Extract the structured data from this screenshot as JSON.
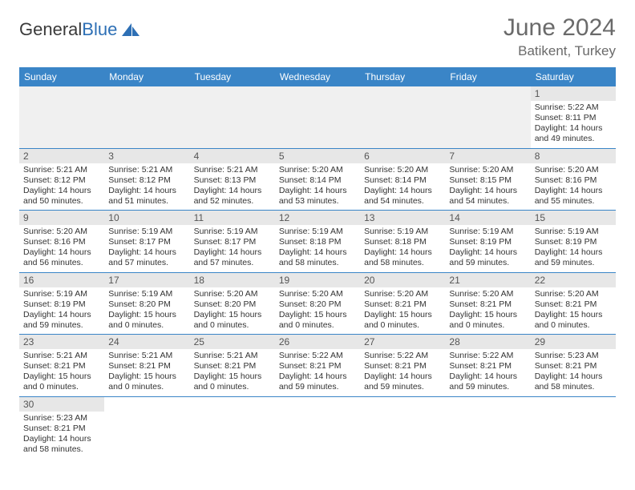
{
  "brand": {
    "name_a": "General",
    "name_b": "Blue"
  },
  "title": "June 2024",
  "location": "Batikent, Turkey",
  "colors": {
    "header_bg": "#3a85c7",
    "header_fg": "#ffffff",
    "daynum_bg": "#e7e7e7",
    "rule": "#3a85c7",
    "title_fg": "#6a6a6a"
  },
  "weekdays": [
    "Sunday",
    "Monday",
    "Tuesday",
    "Wednesday",
    "Thursday",
    "Friday",
    "Saturday"
  ],
  "leading_blanks": 6,
  "days": [
    {
      "n": 1,
      "sunrise": "5:22 AM",
      "sunset": "8:11 PM",
      "daylight": "14 hours and 49 minutes."
    },
    {
      "n": 2,
      "sunrise": "5:21 AM",
      "sunset": "8:12 PM",
      "daylight": "14 hours and 50 minutes."
    },
    {
      "n": 3,
      "sunrise": "5:21 AM",
      "sunset": "8:12 PM",
      "daylight": "14 hours and 51 minutes."
    },
    {
      "n": 4,
      "sunrise": "5:21 AM",
      "sunset": "8:13 PM",
      "daylight": "14 hours and 52 minutes."
    },
    {
      "n": 5,
      "sunrise": "5:20 AM",
      "sunset": "8:14 PM",
      "daylight": "14 hours and 53 minutes."
    },
    {
      "n": 6,
      "sunrise": "5:20 AM",
      "sunset": "8:14 PM",
      "daylight": "14 hours and 54 minutes."
    },
    {
      "n": 7,
      "sunrise": "5:20 AM",
      "sunset": "8:15 PM",
      "daylight": "14 hours and 54 minutes."
    },
    {
      "n": 8,
      "sunrise": "5:20 AM",
      "sunset": "8:16 PM",
      "daylight": "14 hours and 55 minutes."
    },
    {
      "n": 9,
      "sunrise": "5:20 AM",
      "sunset": "8:16 PM",
      "daylight": "14 hours and 56 minutes."
    },
    {
      "n": 10,
      "sunrise": "5:19 AM",
      "sunset": "8:17 PM",
      "daylight": "14 hours and 57 minutes."
    },
    {
      "n": 11,
      "sunrise": "5:19 AM",
      "sunset": "8:17 PM",
      "daylight": "14 hours and 57 minutes."
    },
    {
      "n": 12,
      "sunrise": "5:19 AM",
      "sunset": "8:18 PM",
      "daylight": "14 hours and 58 minutes."
    },
    {
      "n": 13,
      "sunrise": "5:19 AM",
      "sunset": "8:18 PM",
      "daylight": "14 hours and 58 minutes."
    },
    {
      "n": 14,
      "sunrise": "5:19 AM",
      "sunset": "8:19 PM",
      "daylight": "14 hours and 59 minutes."
    },
    {
      "n": 15,
      "sunrise": "5:19 AM",
      "sunset": "8:19 PM",
      "daylight": "14 hours and 59 minutes."
    },
    {
      "n": 16,
      "sunrise": "5:19 AM",
      "sunset": "8:19 PM",
      "daylight": "14 hours and 59 minutes."
    },
    {
      "n": 17,
      "sunrise": "5:19 AM",
      "sunset": "8:20 PM",
      "daylight": "15 hours and 0 minutes."
    },
    {
      "n": 18,
      "sunrise": "5:20 AM",
      "sunset": "8:20 PM",
      "daylight": "15 hours and 0 minutes."
    },
    {
      "n": 19,
      "sunrise": "5:20 AM",
      "sunset": "8:20 PM",
      "daylight": "15 hours and 0 minutes."
    },
    {
      "n": 20,
      "sunrise": "5:20 AM",
      "sunset": "8:21 PM",
      "daylight": "15 hours and 0 minutes."
    },
    {
      "n": 21,
      "sunrise": "5:20 AM",
      "sunset": "8:21 PM",
      "daylight": "15 hours and 0 minutes."
    },
    {
      "n": 22,
      "sunrise": "5:20 AM",
      "sunset": "8:21 PM",
      "daylight": "15 hours and 0 minutes."
    },
    {
      "n": 23,
      "sunrise": "5:21 AM",
      "sunset": "8:21 PM",
      "daylight": "15 hours and 0 minutes."
    },
    {
      "n": 24,
      "sunrise": "5:21 AM",
      "sunset": "8:21 PM",
      "daylight": "15 hours and 0 minutes."
    },
    {
      "n": 25,
      "sunrise": "5:21 AM",
      "sunset": "8:21 PM",
      "daylight": "15 hours and 0 minutes."
    },
    {
      "n": 26,
      "sunrise": "5:22 AM",
      "sunset": "8:21 PM",
      "daylight": "14 hours and 59 minutes."
    },
    {
      "n": 27,
      "sunrise": "5:22 AM",
      "sunset": "8:21 PM",
      "daylight": "14 hours and 59 minutes."
    },
    {
      "n": 28,
      "sunrise": "5:22 AM",
      "sunset": "8:21 PM",
      "daylight": "14 hours and 59 minutes."
    },
    {
      "n": 29,
      "sunrise": "5:23 AM",
      "sunset": "8:21 PM",
      "daylight": "14 hours and 58 minutes."
    },
    {
      "n": 30,
      "sunrise": "5:23 AM",
      "sunset": "8:21 PM",
      "daylight": "14 hours and 58 minutes."
    }
  ],
  "labels": {
    "sunrise": "Sunrise:",
    "sunset": "Sunset:",
    "daylight": "Daylight:"
  }
}
